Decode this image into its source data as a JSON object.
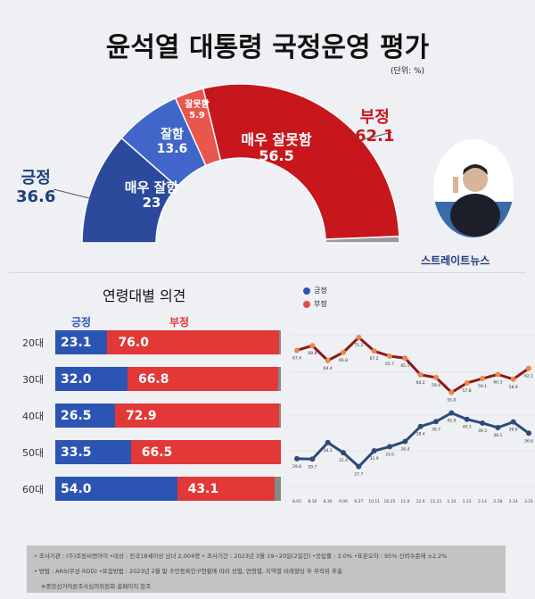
{
  "title": "윤석열 대통령 국정운영 평가",
  "unit": "(단위: %)",
  "gauge": {
    "positive": {
      "label": "긍정",
      "value": "36.6"
    },
    "negative": {
      "label": "부정",
      "value": "62.1"
    },
    "segments": [
      {
        "label": "매우 잘함",
        "value": 23.0,
        "color": "#2b4a9c"
      },
      {
        "label": "잘함",
        "value": 13.6,
        "color": "#3f66c8"
      },
      {
        "label": "잘못함",
        "value": 5.9,
        "color": "#e8564c"
      },
      {
        "label": "매우 잘못함",
        "value": 56.5,
        "color": "#c8161d"
      },
      {
        "label": "",
        "value": 1.3,
        "color": "#9a9a9a"
      }
    ]
  },
  "logo": "스트레이트뉴스",
  "age": {
    "title": "연령대별 의견",
    "pos_header": "긍정",
    "neg_header": "부정",
    "rows": [
      {
        "age": "20대",
        "pos": "23.1",
        "neg": "76.0"
      },
      {
        "age": "30대",
        "pos": "32.0",
        "neg": "66.8"
      },
      {
        "age": "40대",
        "pos": "26.5",
        "neg": "72.9"
      },
      {
        "age": "50대",
        "pos": "33.5",
        "neg": "66.5"
      },
      {
        "age": "60대",
        "pos": "54.0",
        "neg": "43.1"
      }
    ]
  },
  "chart_data": {
    "type": "line",
    "x": [
      "8.02",
      "8.16",
      "8.30",
      "9.06",
      "9.27",
      "10.11",
      "10.25",
      "11.8",
      "12.6",
      "12.21",
      "1.10",
      "1.31",
      "2.14",
      "2.28",
      "3.14",
      "3.21"
    ],
    "series": [
      {
        "name": "긍정",
        "color": "#2c4a7a",
        "values": [
          29.8,
          29.7,
          34.1,
          31.4,
          27.7,
          31.9,
          33.0,
          34.4,
          38.4,
          39.7,
          42.0,
          40.3,
          39.3,
          38.1,
          39.6,
          36.6
        ]
      },
      {
        "name": "부정",
        "color": "#8b1a14",
        "values": [
          67.4,
          68.8,
          64.4,
          66.8,
          71.2,
          67.2,
          65.7,
          65.1,
          60.2,
          59.4,
          55.0,
          57.8,
          59.1,
          60.3,
          58.9,
          62.1
        ]
      }
    ],
    "legend": "top-left",
    "ylim": [
      20,
      80
    ]
  },
  "footer": [
    "• 조사기관 : (주)조원씨앤아이   •대상 : 전국18세이상 남녀 2,004명   • 조사기간 : 2023년 3월 19~20일(2일간)   •응답률 : 3.0%  •표본오차 : 95% 신뢰수준에 ±2.2%",
    "• 방법 : ARS(무선 RDD)   •표집방법 : 2023년 2월 말 주민등록인구현황에 따라 성별, 연령별, 지역별 비례할당 후 무작위 추출",
    "※중앙선거여론조사심의위원회 홈페이지 참조"
  ]
}
